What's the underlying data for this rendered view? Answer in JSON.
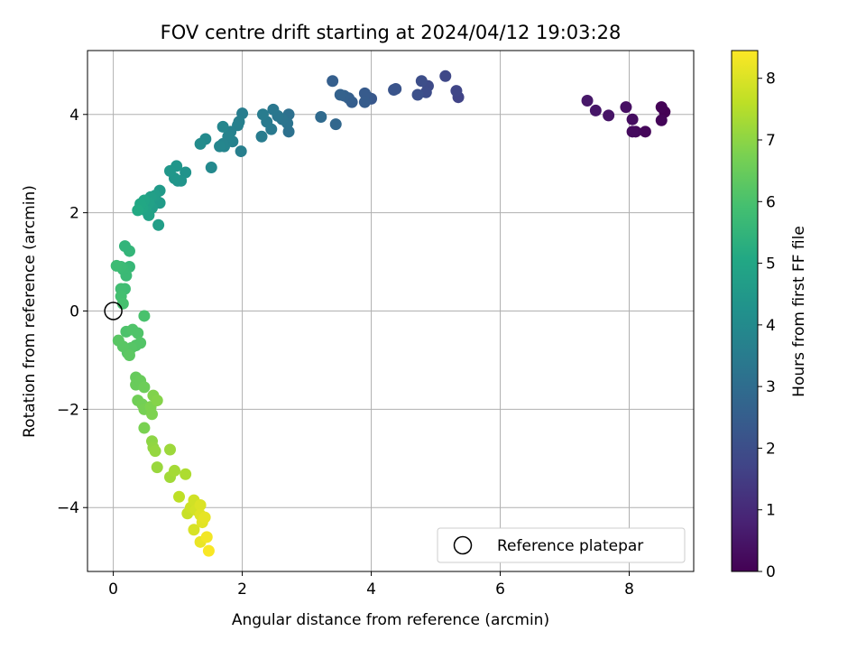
{
  "chart_data": {
    "type": "scatter",
    "title": "FOV centre drift starting at 2024/04/12 19:03:28",
    "xlabel": "Angular distance from reference (arcmin)",
    "ylabel": "Rotation from reference (arcmin)",
    "xlim": [
      -0.4,
      9.0
    ],
    "ylim": [
      -5.3,
      5.3
    ],
    "x_ticks": [
      0,
      2,
      4,
      6,
      8
    ],
    "x_tick_labels": [
      "0",
      "2",
      "4",
      "6",
      "8"
    ],
    "y_ticks": [
      -4,
      -2,
      0,
      2,
      4
    ],
    "y_tick_labels": [
      "−4",
      "−2",
      "0",
      "2",
      "4"
    ],
    "grid": true,
    "colormap": "viridis",
    "colorbar": {
      "label": "Hours from first FF file",
      "range": [
        0,
        8.45
      ],
      "ticks": [
        0,
        1,
        2,
        3,
        4,
        5,
        6,
        7,
        8
      ],
      "tick_labels": [
        "0",
        "1",
        "2",
        "3",
        "4",
        "5",
        "6",
        "7",
        "8"
      ]
    },
    "legend": {
      "placement": "lower-right",
      "entries": [
        "Reference platepar"
      ]
    },
    "reference_point": {
      "x": 0,
      "y": 0,
      "label": "Reference platepar"
    },
    "points": [
      {
        "x": 8.55,
        "y": 4.05,
        "h": 0.0
      },
      {
        "x": 8.5,
        "y": 4.15,
        "h": 0.05
      },
      {
        "x": 8.5,
        "y": 3.88,
        "h": 0.1
      },
      {
        "x": 8.25,
        "y": 3.65,
        "h": 0.15
      },
      {
        "x": 8.1,
        "y": 3.65,
        "h": 0.2
      },
      {
        "x": 8.05,
        "y": 3.65,
        "h": 0.25
      },
      {
        "x": 8.05,
        "y": 3.9,
        "h": 0.3
      },
      {
        "x": 7.95,
        "y": 4.15,
        "h": 0.35
      },
      {
        "x": 7.68,
        "y": 3.98,
        "h": 0.45
      },
      {
        "x": 7.48,
        "y": 4.08,
        "h": 0.5
      },
      {
        "x": 7.35,
        "y": 4.28,
        "h": 0.55
      },
      {
        "x": 5.35,
        "y": 4.35,
        "h": 1.7
      },
      {
        "x": 5.32,
        "y": 4.48,
        "h": 1.75
      },
      {
        "x": 5.15,
        "y": 4.78,
        "h": 1.8
      },
      {
        "x": 4.88,
        "y": 4.58,
        "h": 1.9
      },
      {
        "x": 4.85,
        "y": 4.45,
        "h": 1.95
      },
      {
        "x": 4.78,
        "y": 4.68,
        "h": 2.0
      },
      {
        "x": 4.72,
        "y": 4.4,
        "h": 2.05
      },
      {
        "x": 4.38,
        "y": 4.52,
        "h": 2.15
      },
      {
        "x": 4.35,
        "y": 4.5,
        "h": 2.2
      },
      {
        "x": 4.0,
        "y": 4.32,
        "h": 2.3
      },
      {
        "x": 3.95,
        "y": 4.35,
        "h": 2.35
      },
      {
        "x": 3.9,
        "y": 4.43,
        "h": 2.4
      },
      {
        "x": 3.9,
        "y": 4.25,
        "h": 2.45
      },
      {
        "x": 3.7,
        "y": 4.25,
        "h": 2.5
      },
      {
        "x": 3.65,
        "y": 4.33,
        "h": 2.55
      },
      {
        "x": 3.58,
        "y": 4.38,
        "h": 2.6
      },
      {
        "x": 3.52,
        "y": 4.4,
        "h": 2.65
      },
      {
        "x": 3.4,
        "y": 4.68,
        "h": 2.55
      },
      {
        "x": 3.45,
        "y": 3.8,
        "h": 2.8
      },
      {
        "x": 3.22,
        "y": 3.95,
        "h": 2.9
      },
      {
        "x": 2.72,
        "y": 4.0,
        "h": 3.1
      },
      {
        "x": 2.72,
        "y": 3.65,
        "h": 3.15
      },
      {
        "x": 2.7,
        "y": 3.82,
        "h": 3.2
      },
      {
        "x": 2.62,
        "y": 3.9,
        "h": 3.25
      },
      {
        "x": 2.55,
        "y": 3.97,
        "h": 3.3
      },
      {
        "x": 2.48,
        "y": 4.1,
        "h": 3.35
      },
      {
        "x": 2.45,
        "y": 3.7,
        "h": 3.4
      },
      {
        "x": 2.38,
        "y": 3.85,
        "h": 3.45
      },
      {
        "x": 2.32,
        "y": 4.0,
        "h": 3.5
      },
      {
        "x": 2.3,
        "y": 3.55,
        "h": 3.5
      },
      {
        "x": 2.0,
        "y": 4.02,
        "h": 3.55
      },
      {
        "x": 1.98,
        "y": 3.25,
        "h": 3.6
      },
      {
        "x": 1.95,
        "y": 3.85,
        "h": 3.6
      },
      {
        "x": 1.93,
        "y": 3.78,
        "h": 3.65
      },
      {
        "x": 1.85,
        "y": 3.45,
        "h": 3.7
      },
      {
        "x": 1.82,
        "y": 3.65,
        "h": 3.7
      },
      {
        "x": 1.8,
        "y": 3.5,
        "h": 3.75
      },
      {
        "x": 1.78,
        "y": 3.55,
        "h": 3.75
      },
      {
        "x": 1.72,
        "y": 3.35,
        "h": 3.8
      },
      {
        "x": 1.7,
        "y": 3.4,
        "h": 3.8
      },
      {
        "x": 1.7,
        "y": 3.75,
        "h": 3.85
      },
      {
        "x": 1.65,
        "y": 3.35,
        "h": 3.85
      },
      {
        "x": 1.52,
        "y": 2.92,
        "h": 3.95
      },
      {
        "x": 1.43,
        "y": 3.5,
        "h": 4.0
      },
      {
        "x": 1.35,
        "y": 3.4,
        "h": 4.05
      },
      {
        "x": 1.12,
        "y": 2.82,
        "h": 4.3
      },
      {
        "x": 1.05,
        "y": 2.65,
        "h": 4.35
      },
      {
        "x": 1.0,
        "y": 2.65,
        "h": 4.35
      },
      {
        "x": 0.98,
        "y": 2.95,
        "h": 4.4
      },
      {
        "x": 0.95,
        "y": 2.7,
        "h": 4.4
      },
      {
        "x": 0.88,
        "y": 2.85,
        "h": 4.45
      },
      {
        "x": 0.72,
        "y": 2.45,
        "h": 4.55
      },
      {
        "x": 0.72,
        "y": 2.2,
        "h": 4.6
      },
      {
        "x": 0.7,
        "y": 1.75,
        "h": 4.7
      },
      {
        "x": 0.65,
        "y": 2.35,
        "h": 4.65
      },
      {
        "x": 0.6,
        "y": 2.1,
        "h": 4.7
      },
      {
        "x": 0.58,
        "y": 2.32,
        "h": 4.75
      },
      {
        "x": 0.55,
        "y": 2.2,
        "h": 4.8
      },
      {
        "x": 0.55,
        "y": 1.95,
        "h": 4.85
      },
      {
        "x": 0.5,
        "y": 2.05,
        "h": 4.9
      },
      {
        "x": 0.48,
        "y": 2.25,
        "h": 4.95
      },
      {
        "x": 0.45,
        "y": 2.1,
        "h": 5.0
      },
      {
        "x": 0.42,
        "y": 2.18,
        "h": 5.05
      },
      {
        "x": 0.38,
        "y": 2.05,
        "h": 5.1
      },
      {
        "x": 0.25,
        "y": 1.22,
        "h": 5.55
      },
      {
        "x": 0.25,
        "y": 0.9,
        "h": 5.6
      },
      {
        "x": 0.18,
        "y": 1.32,
        "h": 5.5
      },
      {
        "x": 0.2,
        "y": 0.85,
        "h": 5.65
      },
      {
        "x": 0.2,
        "y": 0.72,
        "h": 5.7
      },
      {
        "x": 0.15,
        "y": 0.85,
        "h": 5.7
      },
      {
        "x": 0.12,
        "y": 0.9,
        "h": 5.72
      },
      {
        "x": 0.05,
        "y": 0.92,
        "h": 5.75
      },
      {
        "x": 0.18,
        "y": 0.45,
        "h": 5.8
      },
      {
        "x": 0.12,
        "y": 0.45,
        "h": 5.85
      },
      {
        "x": 0.12,
        "y": 0.3,
        "h": 5.9
      },
      {
        "x": 0.15,
        "y": 0.15,
        "h": 5.95
      },
      {
        "x": 0.48,
        "y": -0.1,
        "h": 6.0
      },
      {
        "x": 0.2,
        "y": -0.42,
        "h": 6.05
      },
      {
        "x": 0.3,
        "y": -0.38,
        "h": 6.1
      },
      {
        "x": 0.38,
        "y": -0.45,
        "h": 6.1
      },
      {
        "x": 0.42,
        "y": -0.65,
        "h": 6.15
      },
      {
        "x": 0.35,
        "y": -0.7,
        "h": 6.15
      },
      {
        "x": 0.28,
        "y": -0.75,
        "h": 6.2
      },
      {
        "x": 0.22,
        "y": -0.85,
        "h": 6.2
      },
      {
        "x": 0.15,
        "y": -0.72,
        "h": 6.25
      },
      {
        "x": 0.08,
        "y": -0.6,
        "h": 6.25
      },
      {
        "x": 0.25,
        "y": -0.9,
        "h": 6.3
      },
      {
        "x": 0.35,
        "y": -1.35,
        "h": 6.45
      },
      {
        "x": 0.35,
        "y": -1.5,
        "h": 6.5
      },
      {
        "x": 0.42,
        "y": -1.42,
        "h": 6.5
      },
      {
        "x": 0.48,
        "y": -1.55,
        "h": 6.55
      },
      {
        "x": 0.38,
        "y": -1.82,
        "h": 6.6
      },
      {
        "x": 0.45,
        "y": -1.9,
        "h": 6.65
      },
      {
        "x": 0.48,
        "y": -2.0,
        "h": 6.7
      },
      {
        "x": 0.48,
        "y": -2.38,
        "h": 6.75
      },
      {
        "x": 0.58,
        "y": -1.95,
        "h": 6.8
      },
      {
        "x": 0.6,
        "y": -2.1,
        "h": 6.8
      },
      {
        "x": 0.62,
        "y": -1.72,
        "h": 6.85
      },
      {
        "x": 0.68,
        "y": -1.82,
        "h": 6.9
      },
      {
        "x": 0.6,
        "y": -2.65,
        "h": 7.0
      },
      {
        "x": 0.62,
        "y": -2.78,
        "h": 7.05
      },
      {
        "x": 0.65,
        "y": -2.85,
        "h": 7.1
      },
      {
        "x": 0.68,
        "y": -3.18,
        "h": 7.15
      },
      {
        "x": 0.88,
        "y": -2.82,
        "h": 7.2
      },
      {
        "x": 0.88,
        "y": -3.38,
        "h": 7.25
      },
      {
        "x": 0.95,
        "y": -3.25,
        "h": 7.3
      },
      {
        "x": 1.12,
        "y": -3.32,
        "h": 7.4
      },
      {
        "x": 1.02,
        "y": -3.78,
        "h": 7.6
      },
      {
        "x": 1.15,
        "y": -4.12,
        "h": 7.75
      },
      {
        "x": 1.2,
        "y": -4.0,
        "h": 7.8
      },
      {
        "x": 1.25,
        "y": -3.85,
        "h": 7.85
      },
      {
        "x": 1.28,
        "y": -4.05,
        "h": 7.9
      },
      {
        "x": 1.25,
        "y": -4.45,
        "h": 7.95
      },
      {
        "x": 1.35,
        "y": -3.95,
        "h": 8.0
      },
      {
        "x": 1.35,
        "y": -4.15,
        "h": 8.05
      },
      {
        "x": 1.38,
        "y": -4.3,
        "h": 8.1
      },
      {
        "x": 1.42,
        "y": -4.2,
        "h": 8.15
      },
      {
        "x": 1.35,
        "y": -4.7,
        "h": 8.2
      },
      {
        "x": 1.45,
        "y": -4.6,
        "h": 8.3
      },
      {
        "x": 1.48,
        "y": -4.88,
        "h": 8.4
      }
    ]
  }
}
